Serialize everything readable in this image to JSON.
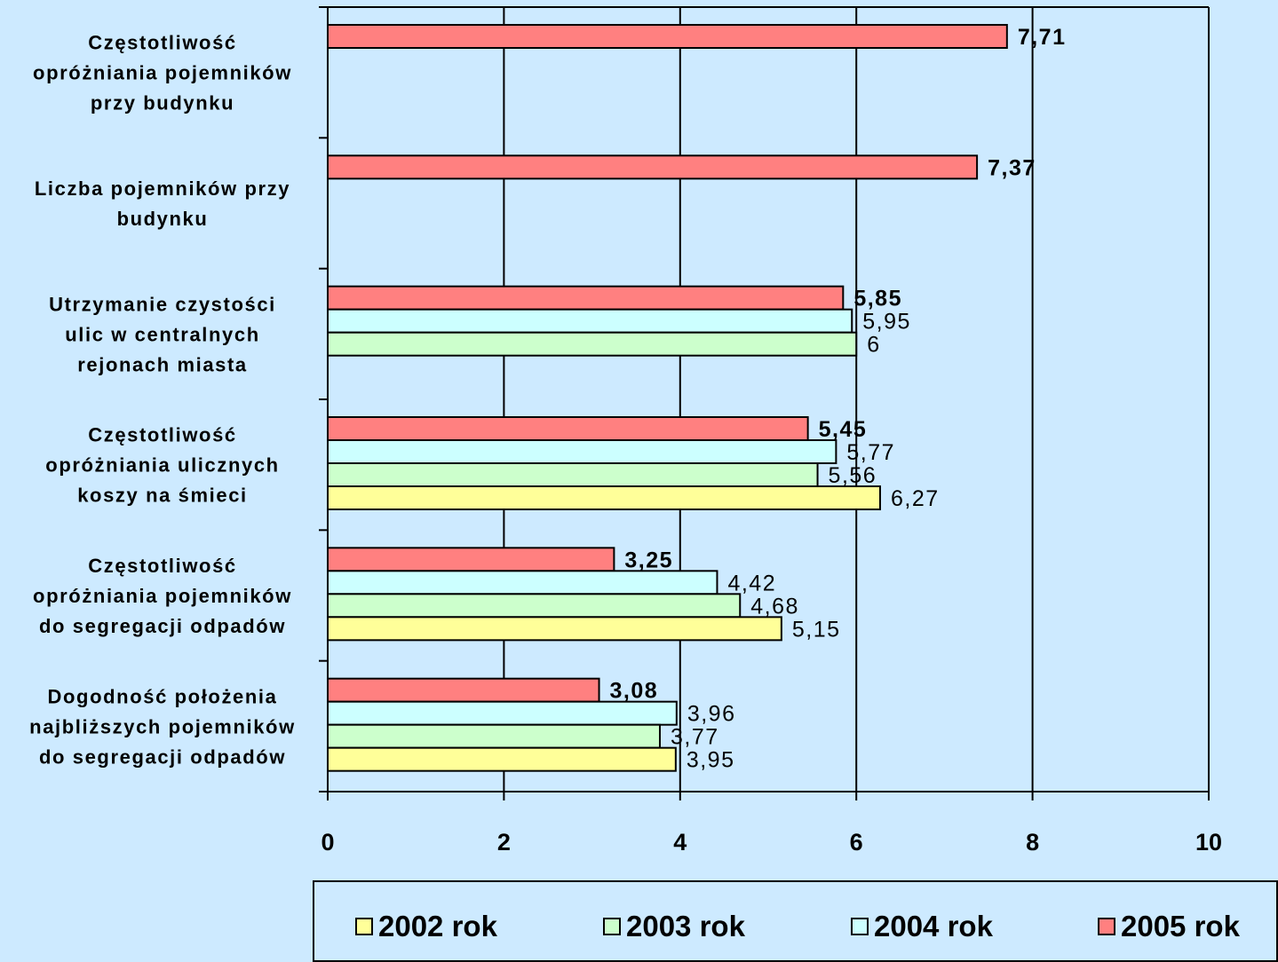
{
  "chart_data": {
    "type": "bar",
    "orientation": "horizontal",
    "categories": [
      [
        "Częstotliwość",
        "opróżniania pojemników",
        "przy budynku"
      ],
      [
        "Liczba pojemników przy",
        "budynku"
      ],
      [
        "Utrzymanie czystości",
        "ulic w centralnych",
        "rejonach miasta"
      ],
      [
        "Częstotliwość",
        "opróżniania ulicznych",
        "koszy na śmieci"
      ],
      [
        "Częstotliwość",
        "opróżniania pojemników",
        "do segregacji odpadów"
      ],
      [
        "Dogodność położenia",
        "najbliższych pojemników",
        "do segregacji odpadów"
      ]
    ],
    "series": [
      {
        "name": "2005 rok",
        "color": "#ff8080",
        "bold_labels": true,
        "values": [
          7.71,
          7.37,
          5.85,
          5.45,
          3.25,
          3.08
        ],
        "labels": [
          "7,71",
          "7,37",
          "5,85",
          "5,45",
          "3,25",
          "3,08"
        ]
      },
      {
        "name": "2004 rok",
        "color": "#ccffff",
        "bold_labels": false,
        "values": [
          null,
          null,
          5.95,
          5.77,
          4.42,
          3.96
        ],
        "labels": [
          "",
          "",
          "5,95",
          "5,77",
          "4,42",
          "3,96"
        ]
      },
      {
        "name": "2003 rok",
        "color": "#ccffcc",
        "bold_labels": false,
        "values": [
          null,
          null,
          6,
          5.56,
          4.68,
          3.77
        ],
        "labels": [
          "",
          "",
          "6",
          "5,56",
          "4,68",
          "3,77"
        ]
      },
      {
        "name": "2002 rok",
        "color": "#ffff99",
        "bold_labels": false,
        "values": [
          null,
          null,
          null,
          6.27,
          5.15,
          3.95
        ],
        "labels": [
          "",
          "",
          "",
          "6,27",
          "5,15",
          "3,95"
        ]
      }
    ],
    "xlim": [
      0,
      10
    ],
    "x_ticks": [
      0,
      2,
      4,
      6,
      8,
      10
    ],
    "x_tick_labels": [
      "0",
      "2",
      "4",
      "6",
      "8",
      "10"
    ],
    "grid": true,
    "legend_position": "bottom",
    "legend_order": [
      "2002 rok",
      "2003 rok",
      "2004 rok",
      "2005 rok"
    ],
    "background": "#cdeaff"
  }
}
